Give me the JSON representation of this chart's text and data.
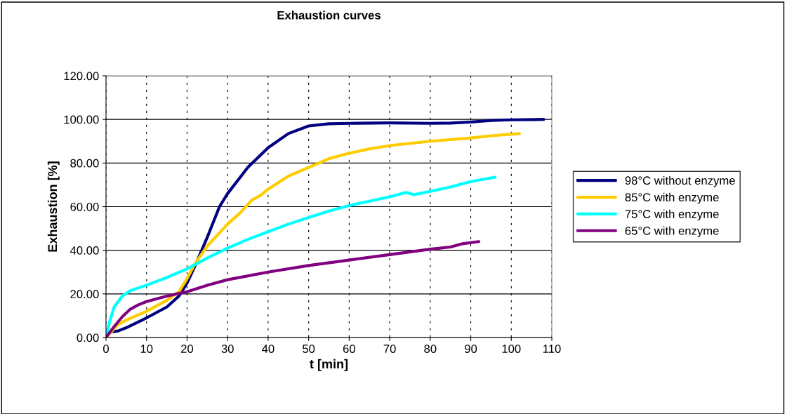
{
  "chart_data": {
    "type": "line",
    "title": "Exhaustion curves",
    "xlabel": "t [min]",
    "ylabel": "Exhaustion [%]",
    "xlim": [
      0,
      110
    ],
    "xticks": [
      0,
      10,
      20,
      30,
      40,
      50,
      60,
      70,
      80,
      90,
      100,
      110
    ],
    "ylim": [
      0,
      120
    ],
    "yticks": [
      {
        "value": 0,
        "label": "0.00"
      },
      {
        "value": 20,
        "label": "20.00"
      },
      {
        "value": 40,
        "label": "40.00"
      },
      {
        "value": 60,
        "label": "60.00"
      },
      {
        "value": 80,
        "label": "80.00"
      },
      {
        "value": 100,
        "label": "100.00"
      },
      {
        "value": 120,
        "label": "120.00"
      }
    ],
    "grid": true,
    "legend": "right",
    "marker": "none",
    "line_style": "solid",
    "series": [
      {
        "name": "98°C without enzyme",
        "color": "#000080",
        "x": [
          0,
          1,
          3,
          5,
          10,
          15,
          18,
          20,
          22,
          25,
          28,
          30,
          35,
          40,
          45,
          50,
          55,
          60,
          70,
          80,
          85,
          90,
          95,
          100,
          108
        ],
        "values": [
          0,
          2.5,
          3,
          4.5,
          9,
          14,
          19,
          25,
          33,
          46,
          60,
          66,
          78,
          87,
          93.5,
          97,
          98,
          98.2,
          98.4,
          98.2,
          98.3,
          98.8,
          99.5,
          99.8,
          100
        ]
      },
      {
        "name": "85°C with enzyme",
        "color": "#ffcc00",
        "x": [
          0,
          3,
          5,
          10,
          15,
          18,
          20,
          22,
          25,
          28,
          30,
          33,
          36,
          38,
          40,
          45,
          50,
          55,
          60,
          65,
          70,
          80,
          90,
          95,
          102
        ],
        "values": [
          0,
          6,
          8,
          12,
          17,
          21,
          27,
          34,
          42,
          48,
          52,
          57,
          63,
          65,
          68,
          74,
          78,
          82,
          84.5,
          86.5,
          88,
          90,
          91.5,
          92.5,
          93.5
        ]
      },
      {
        "name": "75°C with enzyme",
        "color": "#00ffff",
        "x": [
          0,
          1,
          2,
          4,
          6,
          10,
          15,
          20,
          25,
          30,
          35,
          40,
          45,
          50,
          55,
          60,
          65,
          70,
          74,
          76,
          80,
          85,
          90,
          96
        ],
        "values": [
          0,
          8,
          14,
          19,
          21.5,
          24,
          27.5,
          31.5,
          36.5,
          41,
          45,
          48.5,
          52,
          55,
          58,
          60.5,
          62.5,
          64.5,
          66.5,
          65.5,
          67,
          69,
          71.5,
          73.5
        ]
      },
      {
        "name": "65°C with enzyme",
        "color": "#800080",
        "x": [
          0,
          2,
          4,
          6,
          8,
          10,
          15,
          20,
          25,
          30,
          40,
          50,
          60,
          70,
          80,
          85,
          88,
          92
        ],
        "values": [
          0,
          5,
          9.5,
          13,
          15,
          16.5,
          19,
          21,
          24,
          26.5,
          30,
          33,
          35.5,
          38,
          40.5,
          41.5,
          43,
          44
        ]
      }
    ]
  }
}
